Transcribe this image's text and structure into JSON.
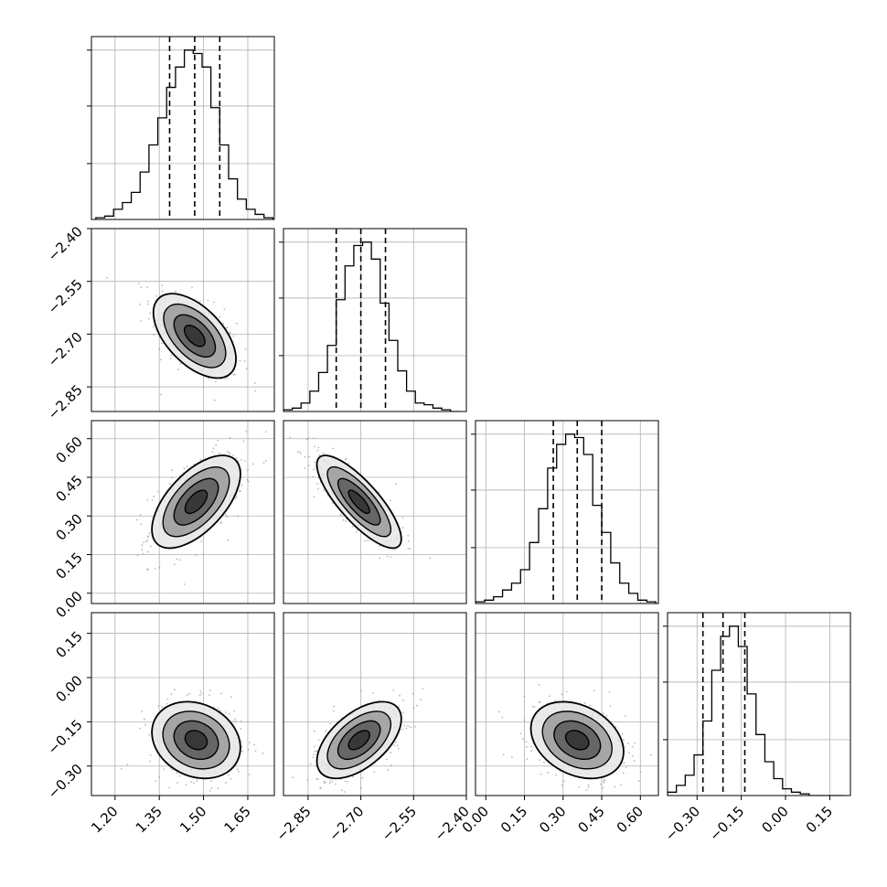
{
  "chart_data": {
    "type": "corner",
    "title": "",
    "grid": true,
    "params": [
      {
        "ticks": [
          1.2,
          1.35,
          1.5,
          1.65
        ],
        "tick_labels": [
          "1.20",
          "1.35",
          "1.50",
          "1.65"
        ],
        "range": [
          1.12,
          1.74
        ],
        "quantiles": [
          1.385,
          1.47,
          1.555
        ],
        "hist": {
          "bins": [
            1.135,
            1.165,
            1.195,
            1.225,
            1.255,
            1.285,
            1.315,
            1.345,
            1.375,
            1.405,
            1.435,
            1.465,
            1.495,
            1.525,
            1.555,
            1.585,
            1.615,
            1.645,
            1.675,
            1.705,
            1.735
          ],
          "counts": [
            0.01,
            0.02,
            0.06,
            0.1,
            0.16,
            0.28,
            0.44,
            0.6,
            0.78,
            0.9,
            1.0,
            0.98,
            0.9,
            0.66,
            0.44,
            0.24,
            0.12,
            0.06,
            0.03,
            0.01
          ]
        },
        "hist_yticks": [
          0.33,
          0.67,
          1.0
        ]
      },
      {
        "ticks": [
          -2.85,
          -2.7,
          -2.55,
          -2.4
        ],
        "tick_labels": [
          "−2.85",
          "−2.70",
          "−2.55",
          "−2.40"
        ],
        "range": [
          -2.92,
          -2.4
        ],
        "quantiles": [
          -2.77,
          -2.7,
          -2.63
        ],
        "hist": {
          "bins": [
            -2.92,
            -2.895,
            -2.87,
            -2.845,
            -2.82,
            -2.795,
            -2.77,
            -2.745,
            -2.72,
            -2.695,
            -2.67,
            -2.645,
            -2.62,
            -2.595,
            -2.57,
            -2.545,
            -2.52,
            -2.495,
            -2.47,
            -2.445,
            -2.42
          ],
          "counts": [
            0.01,
            0.02,
            0.05,
            0.12,
            0.23,
            0.39,
            0.66,
            0.86,
            0.98,
            1.0,
            0.9,
            0.64,
            0.42,
            0.24,
            0.12,
            0.05,
            0.04,
            0.02,
            0.01,
            0.0
          ]
        },
        "hist_yticks": [
          0.33,
          0.67,
          1.0
        ]
      },
      {
        "ticks": [
          0.0,
          0.15,
          0.3,
          0.45,
          0.6
        ],
        "tick_labels": [
          "0.00",
          "0.15",
          "0.30",
          "0.45",
          "0.60"
        ],
        "range": [
          -0.04,
          0.67
        ],
        "quantiles": [
          0.262,
          0.355,
          0.45
        ],
        "hist": {
          "bins": [
            -0.04,
            -0.005,
            0.03,
            0.065,
            0.1,
            0.135,
            0.17,
            0.205,
            0.24,
            0.275,
            0.31,
            0.345,
            0.38,
            0.415,
            0.45,
            0.485,
            0.52,
            0.555,
            0.59,
            0.625,
            0.66
          ],
          "counts": [
            0.01,
            0.02,
            0.04,
            0.08,
            0.12,
            0.2,
            0.36,
            0.56,
            0.8,
            0.94,
            1.0,
            0.98,
            0.88,
            0.58,
            0.42,
            0.24,
            0.12,
            0.06,
            0.02,
            0.01
          ]
        },
        "hist_yticks": [
          0.33,
          0.67,
          1.0
        ]
      },
      {
        "ticks": [
          -0.3,
          -0.15,
          0.0,
          0.15
        ],
        "tick_labels": [
          "−0.30",
          "−0.15",
          "0.00",
          "0.15"
        ],
        "range": [
          -0.4,
          0.22
        ],
        "quantiles": [
          -0.28,
          -0.212,
          -0.138
        ],
        "hist": {
          "bins": [
            -0.4,
            -0.37,
            -0.34,
            -0.31,
            -0.28,
            -0.25,
            -0.22,
            -0.19,
            -0.16,
            -0.13,
            -0.1,
            -0.07,
            -0.04,
            -0.01,
            0.02,
            0.05,
            0.08,
            0.11,
            0.14,
            0.17,
            0.2
          ],
          "counts": [
            0.02,
            0.06,
            0.12,
            0.24,
            0.44,
            0.74,
            0.94,
            1.0,
            0.88,
            0.6,
            0.36,
            0.2,
            0.1,
            0.04,
            0.02,
            0.01,
            0.0,
            0.0,
            0.0,
            0.0
          ]
        },
        "hist_yticks": [
          0.33,
          0.67,
          1.0
        ]
      }
    ],
    "pairs": [
      {
        "row": 1,
        "col": 0,
        "mean": [
          1.47,
          -2.705
        ],
        "std": [
          0.07,
          0.06
        ],
        "corr": -0.55
      },
      {
        "row": 2,
        "col": 0,
        "mean": [
          1.475,
          0.355
        ],
        "std": [
          0.075,
          0.09
        ],
        "corr": 0.6
      },
      {
        "row": 2,
        "col": 1,
        "mean": [
          -2.705,
          0.355
        ],
        "std": [
          0.06,
          0.09
        ],
        "corr": -0.8
      },
      {
        "row": 3,
        "col": 0,
        "mean": [
          1.475,
          -0.212
        ],
        "std": [
          0.075,
          0.065
        ],
        "corr": -0.2
      },
      {
        "row": 3,
        "col": 1,
        "mean": [
          -2.705,
          -0.212
        ],
        "std": [
          0.06,
          0.065
        ],
        "corr": 0.55
      },
      {
        "row": 3,
        "col": 2,
        "mean": [
          0.355,
          -0.212
        ],
        "std": [
          0.09,
          0.065
        ],
        "corr": -0.3
      }
    ],
    "contour_levels_sigma": [
      0.5,
      1.0,
      1.5,
      2.0
    ],
    "scatter_points_per_panel": 420,
    "colors": {
      "line": "#000000",
      "scatter": "#7f7f7f",
      "grid": "#b0b0b0",
      "background": "#ffffff"
    }
  }
}
